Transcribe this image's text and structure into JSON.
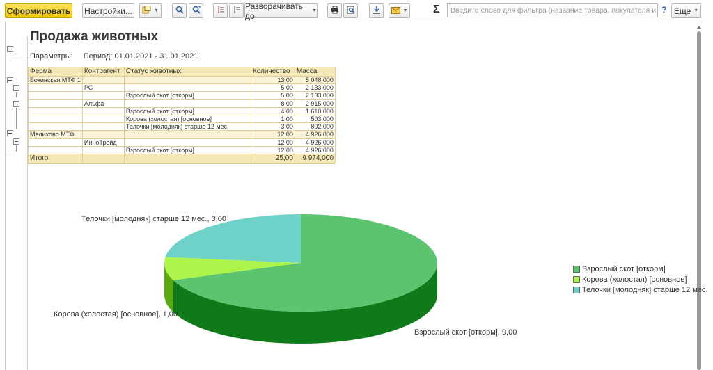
{
  "toolbar": {
    "generate_label": "Сформировать",
    "settings_label": "Настройки...",
    "expand_label": "Разворачивать до",
    "search_placeholder": "Введите слово для фильтра (название товара, покупателя и пр.)",
    "help_label": "?",
    "more_label": "Еще"
  },
  "report": {
    "title": "Продажа животных",
    "params_label": "Параметры:",
    "params_value": "Период: 01.01.2021 - 31.01.2021",
    "columns": [
      "Ферма",
      "Контрагент",
      "Статус животных",
      "Количество",
      "Масса"
    ],
    "rows": [
      {
        "farm": "Бокинская МТФ 1",
        "contractor": "",
        "status": "",
        "qty": "13,00",
        "mass": "5 048,000",
        "group": true
      },
      {
        "farm": "",
        "contractor": "РС",
        "status": "",
        "qty": "5,00",
        "mass": "2 133,000",
        "group": false
      },
      {
        "farm": "",
        "contractor": "",
        "status": "Взрослый скот [откорм]",
        "qty": "5,00",
        "mass": "2 133,000",
        "group": false
      },
      {
        "farm": "",
        "contractor": "Альфа",
        "status": "",
        "qty": "8,00",
        "mass": "2 915,000",
        "group": false
      },
      {
        "farm": "",
        "contractor": "",
        "status": "Взрослый скот [откорм]",
        "qty": "4,00",
        "mass": "1 610,000",
        "group": false
      },
      {
        "farm": "",
        "contractor": "",
        "status": "Корова (холостая) [основное]",
        "qty": "1,00",
        "mass": "503,000",
        "group": false
      },
      {
        "farm": "",
        "contractor": "",
        "status": "Телочки [молодняк] старше 12 мес.",
        "qty": "3,00",
        "mass": "802,000",
        "group": false
      },
      {
        "farm": "Мелихово МТФ",
        "contractor": "",
        "status": "",
        "qty": "12,00",
        "mass": "4 926,000",
        "group": true
      },
      {
        "farm": "",
        "contractor": "ИнноТрейд",
        "status": "",
        "qty": "12,00",
        "mass": "4 926,000",
        "group": false
      },
      {
        "farm": "",
        "contractor": "",
        "status": "Взрослый скот [откорм]",
        "qty": "12,00",
        "mass": "4 926,000",
        "group": false
      }
    ],
    "total": {
      "label": "Итого",
      "qty": "25,00",
      "mass": "9 974,000"
    }
  },
  "chart_data": {
    "type": "pie",
    "categories": [
      "Взрослый скот [откорм]",
      "Корова (холостая) [основное]",
      "Телочки [молодняк] старше 12 мес."
    ],
    "values": [
      9,
      1,
      3
    ],
    "slice_labels": [
      "Взрослый скот [откорм], 9,00",
      "Корова (холостая) [основное], 1,00",
      "Телочки [молодняк] старше 12 мес., 3,00"
    ],
    "colors": [
      "#5cc46e",
      "#adf54a",
      "#6fd2c8"
    ],
    "legend_position": "right"
  }
}
